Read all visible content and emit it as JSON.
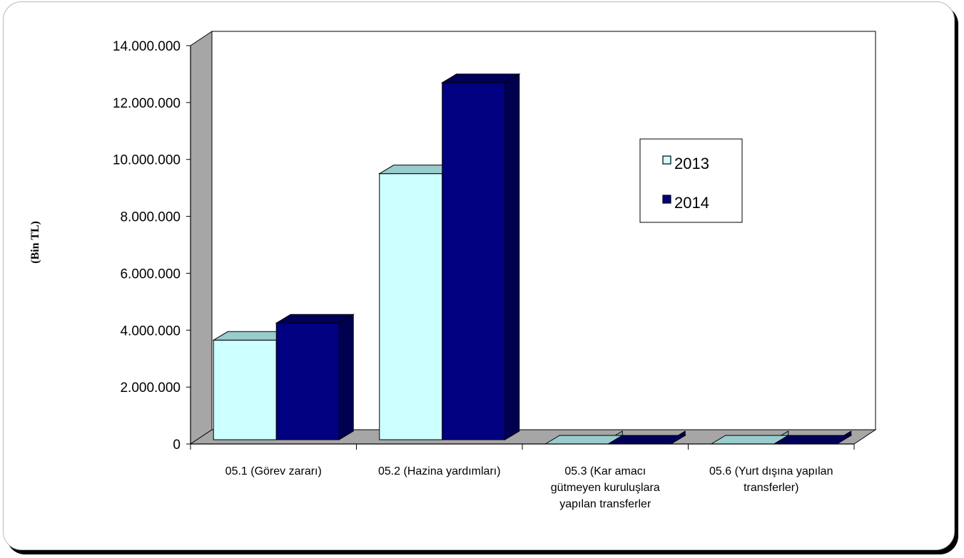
{
  "chart_data": {
    "type": "bar",
    "title": "",
    "xlabel": "",
    "ylabel": "(Bin TL)",
    "ylim": [
      0,
      14000000
    ],
    "yticks": [
      0,
      2000000,
      4000000,
      6000000,
      8000000,
      10000000,
      12000000,
      14000000
    ],
    "ytick_labels": [
      "0",
      "2.000.000",
      "4.000.000",
      "6.000.000",
      "8.000.000",
      "10.000.000",
      "12.000.000",
      "14.000.000"
    ],
    "categories": [
      [
        "05.1 (Görev zararı)"
      ],
      [
        "05.2 (Hazina yardımları)"
      ],
      [
        "05.3 (Kar amacı",
        "gütmeyen kuruluşlara",
        "yapılan transferler"
      ],
      [
        "05.6 (Yurt dışına yapılan",
        "transferler)"
      ]
    ],
    "series": [
      {
        "name": "2013",
        "values": [
          3650000,
          9500000,
          0,
          0
        ]
      },
      {
        "name": "2014",
        "values": [
          4250000,
          12700000,
          0,
          0
        ]
      }
    ],
    "legend_position": "right",
    "grid": false,
    "colors": {
      "2013_front": "#ccffff",
      "2013_top": "#99cccc",
      "2013_side": "#80b3b3",
      "2014_front": "#000080",
      "2014_top": "#00005a",
      "2014_side": "#000050",
      "wall_side": "#a6a6a6",
      "floor": "#a6a6a6"
    }
  }
}
